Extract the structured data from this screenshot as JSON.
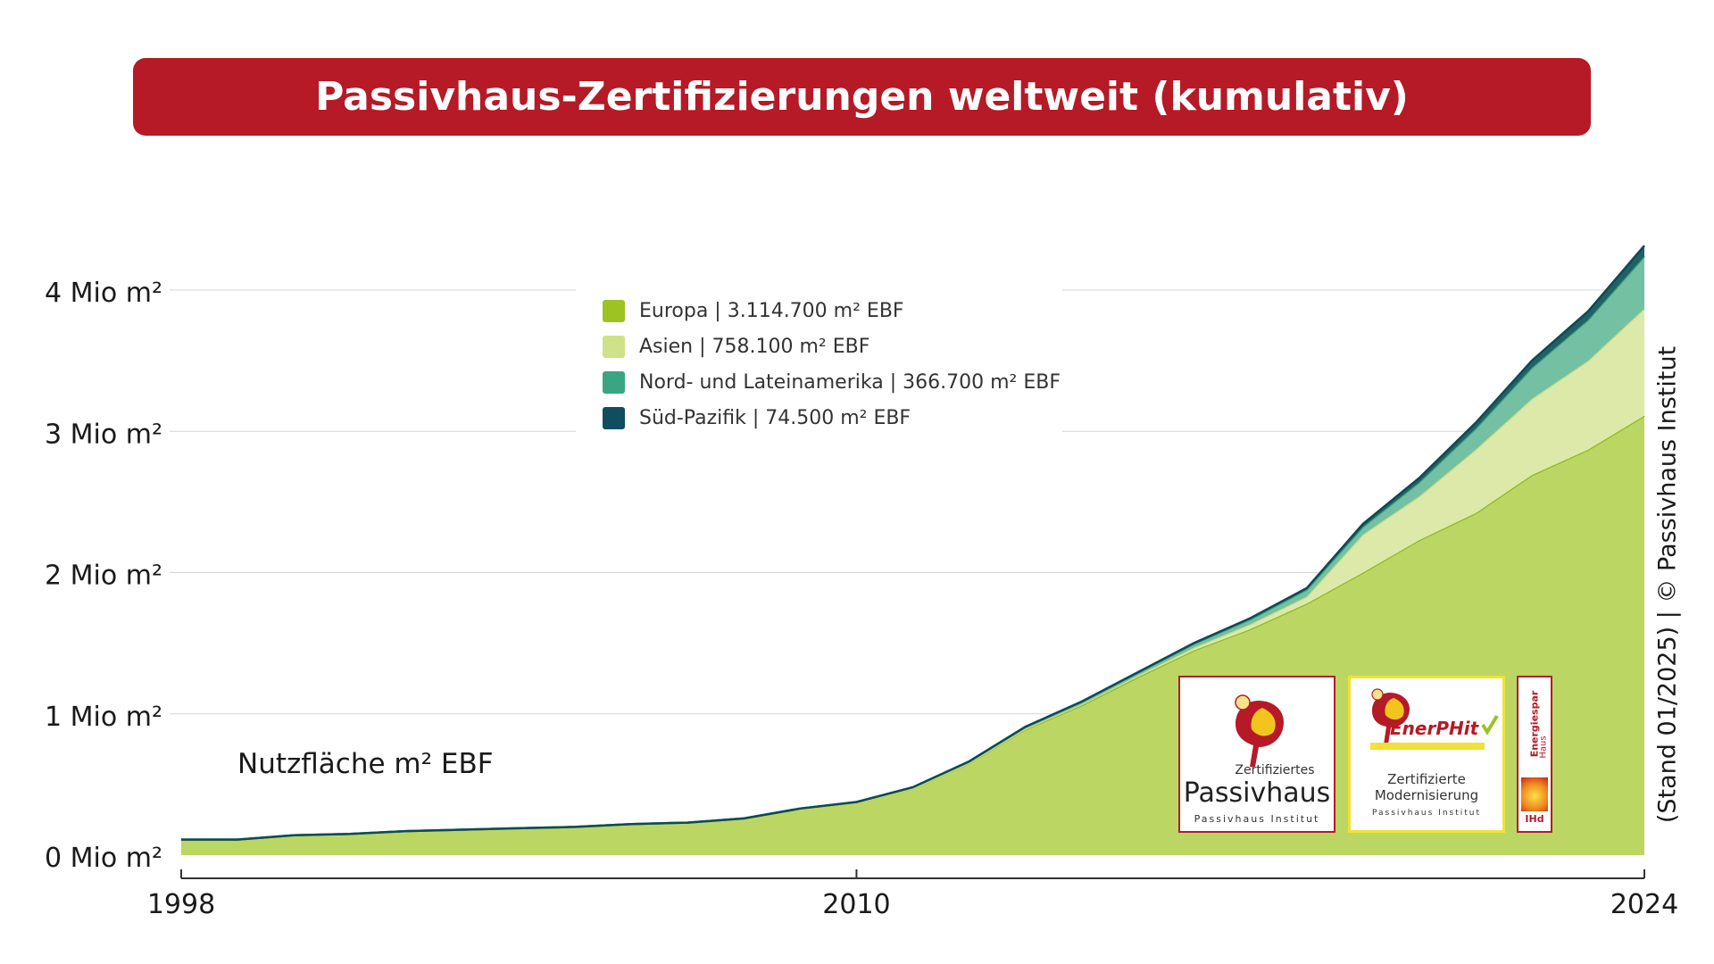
{
  "title": "Passivhaus-Zertifizierungen weltweit (kumulativ)",
  "ylabel": "Nutzfläche m² EBF",
  "side_note": "(Stand 01/2025) | © Passivhaus Institut",
  "colors": {
    "banner": "#b51a26",
    "europa": "#bcd663",
    "europa_line": "#93b725",
    "asien": "#dce9a9",
    "asien_line": "#c8dd82",
    "amerika": "#74c0a3",
    "amerika_line": "#3a9f82",
    "pazifik": "#1f6265",
    "pazifik_line": "#0f4a53"
  },
  "legend": [
    {
      "label": "Europa | 3.114.700 m² EBF",
      "color": "#9cc322"
    },
    {
      "label": "Asien | 758.100 m² EBF",
      "color": "#cfe28a"
    },
    {
      "label": "Nord- und Lateinamerika | 366.700 m² EBF",
      "color": "#3aa583"
    },
    {
      "label": "Süd-Pazifik | 74.500 m² EBF",
      "color": "#0f4e5e"
    }
  ],
  "logos": {
    "passivhaus": {
      "line1": "Zertifiziertes",
      "line2": "Passivhaus",
      "line3": "Passivhaus Institut"
    },
    "enerphit": {
      "brand": "EnerPHit",
      "line1": "Zertifizierte",
      "line2": "Modernisierung",
      "line3": "Passivhaus Institut"
    },
    "energiespar": {
      "line1": "Energiespar",
      "line2": "Haus",
      "line3": "IHd"
    }
  },
  "chart_data": {
    "type": "area",
    "stacked": true,
    "x": [
      1998,
      1999,
      2000,
      2001,
      2002,
      2003,
      2004,
      2005,
      2006,
      2007,
      2008,
      2009,
      2010,
      2011,
      2012,
      2013,
      2014,
      2015,
      2016,
      2017,
      2018,
      2019,
      2020,
      2021,
      2022,
      2023,
      2024
    ],
    "series": [
      {
        "name": "Europa | 3.114.700 m² EBF",
        "values": [
          0.11,
          0.11,
          0.14,
          0.15,
          0.17,
          0.18,
          0.19,
          0.2,
          0.22,
          0.23,
          0.26,
          0.33,
          0.37,
          0.47,
          0.65,
          0.89,
          1.06,
          1.26,
          1.45,
          1.6,
          1.78,
          2.0,
          2.23,
          2.42,
          2.69,
          2.87,
          3.11
        ]
      },
      {
        "name": "Asien | 758.100 m² EBF",
        "values": [
          0,
          0,
          0,
          0,
          0,
          0,
          0,
          0,
          0,
          0,
          0,
          0,
          0.001,
          0.002,
          0.003,
          0.005,
          0.008,
          0.012,
          0.02,
          0.035,
          0.05,
          0.27,
          0.31,
          0.45,
          0.54,
          0.63,
          0.76
        ]
      },
      {
        "name": "Nord- und Lateinamerika | 366.700 m² EBF",
        "values": [
          0,
          0,
          0,
          0,
          0,
          0,
          0,
          0,
          0,
          0,
          0,
          0,
          0.005,
          0.008,
          0.01,
          0.013,
          0.017,
          0.02,
          0.027,
          0.035,
          0.05,
          0.055,
          0.1,
          0.15,
          0.22,
          0.29,
          0.37
        ]
      },
      {
        "name": "Süd-Pazifik | 74.500 m² EBF",
        "values": [
          0,
          0,
          0,
          0,
          0,
          0,
          0,
          0,
          0,
          0,
          0,
          0,
          0,
          0,
          0,
          0.001,
          0.002,
          0.003,
          0.005,
          0.008,
          0.01,
          0.02,
          0.03,
          0.04,
          0.05,
          0.06,
          0.075
        ]
      }
    ],
    "y_ticks": [
      0,
      1,
      2,
      3,
      4
    ],
    "y_tick_labels": [
      "0 Mio m²",
      "1 Mio m²",
      "2 Mio m²",
      "3 Mio m²",
      "4 Mio m²"
    ],
    "x_ticks": [
      1998,
      2010,
      2024
    ],
    "x_tick_labels": [
      "1998",
      "2010",
      "2024"
    ],
    "ylim": [
      0,
      4.3
    ],
    "xlim": [
      1998,
      2024
    ],
    "grid": true,
    "legend_position": "top-center"
  }
}
